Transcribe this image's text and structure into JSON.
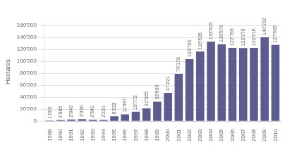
{
  "chart_data": {
    "type": "bar",
    "categories": [
      "1988",
      "1990",
      "1991",
      "1992",
      "1993",
      "1994",
      "1995",
      "1996",
      "1997",
      "1998",
      "1999",
      "2000",
      "2001",
      "2002",
      "2003",
      "2004",
      "2005",
      "2006",
      "2007",
      "2008",
      "2009",
      "2010"
    ],
    "values": [
      1000,
      1885,
      2840,
      3330,
      2540,
      2220,
      8232,
      11397,
      15772,
      21565,
      32609,
      47221,
      79178,
      103700,
      116535,
      133009,
      128576,
      122765,
      122270,
      122616,
      140292,
      127605
    ],
    "value_labels": [
      "1'000",
      "1'885",
      "2'840",
      "3'330",
      "2'540",
      "2'220",
      "8'232",
      "11'397",
      "15'772",
      "21'565",
      "32'609",
      "47'221",
      "79'178",
      "103'700",
      "116'535",
      "133'009",
      "128'576",
      "122'765",
      "122'270",
      "122'616",
      "140'292",
      "127'605"
    ],
    "data_labels": true,
    "color": "#5c5c8e",
    "ylabel": "Hectares",
    "ylim": [
      0,
      165000
    ],
    "yticks": [
      0,
      {
        "value": 20000,
        "label": "20'000"
      },
      {
        "value": 40000,
        "label": "40'000"
      },
      {
        "value": 60000,
        "label": "60'000"
      },
      {
        "value": 80000,
        "label": "80'000"
      },
      {
        "value": 100000,
        "label": "100'000"
      },
      {
        "value": 120000,
        "label": "120'000"
      },
      {
        "value": 140000,
        "label": "140'000"
      },
      {
        "value": 160000,
        "label": "160'000"
      }
    ],
    "grid": true
  }
}
